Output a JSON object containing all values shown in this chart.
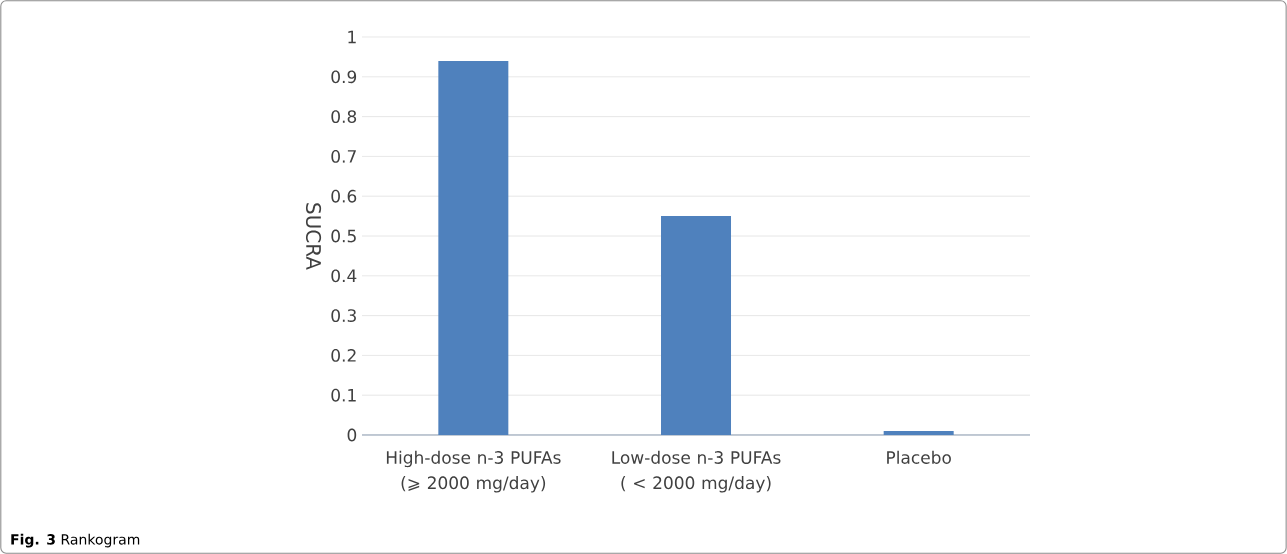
{
  "chart_data": {
    "type": "bar",
    "ylabel": "SUCRA",
    "categories": [
      "High-dose n-3 PUFAs (⩾ 2000 mg/day)",
      "Low-dose n-3 PUFAs ( <  2000 mg/day)",
      "Placebo"
    ],
    "values": [
      0.94,
      0.55,
      0.01
    ],
    "color": "#4f81bd",
    "ylim": [
      0,
      1
    ],
    "yticks": [
      0,
      0.1,
      0.2,
      0.3,
      0.4,
      0.5,
      0.6,
      0.7,
      0.8,
      0.9,
      1
    ],
    "grid": "y",
    "annotations": [
      "**Fig. 3** Rankogram"
    ]
  }
}
